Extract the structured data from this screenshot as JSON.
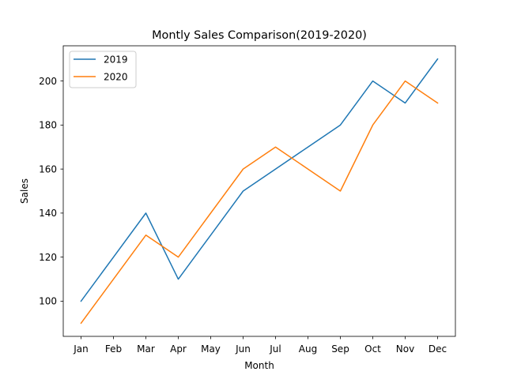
{
  "chart_data": {
    "type": "line",
    "title": "Montly Sales Comparison(2019-2020)",
    "xlabel": "Month",
    "ylabel": "Sales",
    "categories": [
      "Jan",
      "Feb",
      "Mar",
      "Apr",
      "May",
      "Jun",
      "Jul",
      "Aug",
      "Sep",
      "Oct",
      "Nov",
      "Dec"
    ],
    "series": [
      {
        "name": "2019",
        "color": "#1f77b4",
        "values": [
          100,
          120,
          140,
          110,
          130,
          150,
          160,
          170,
          180,
          200,
          190,
          210
        ]
      },
      {
        "name": "2020",
        "color": "#ff7f0e",
        "values": [
          90,
          110,
          130,
          120,
          140,
          160,
          170,
          160,
          150,
          180,
          200,
          190
        ]
      }
    ],
    "yticks": [
      100,
      120,
      140,
      160,
      180,
      200
    ],
    "ylim": [
      84,
      216
    ],
    "grid": false,
    "legend_position": "top-left"
  }
}
